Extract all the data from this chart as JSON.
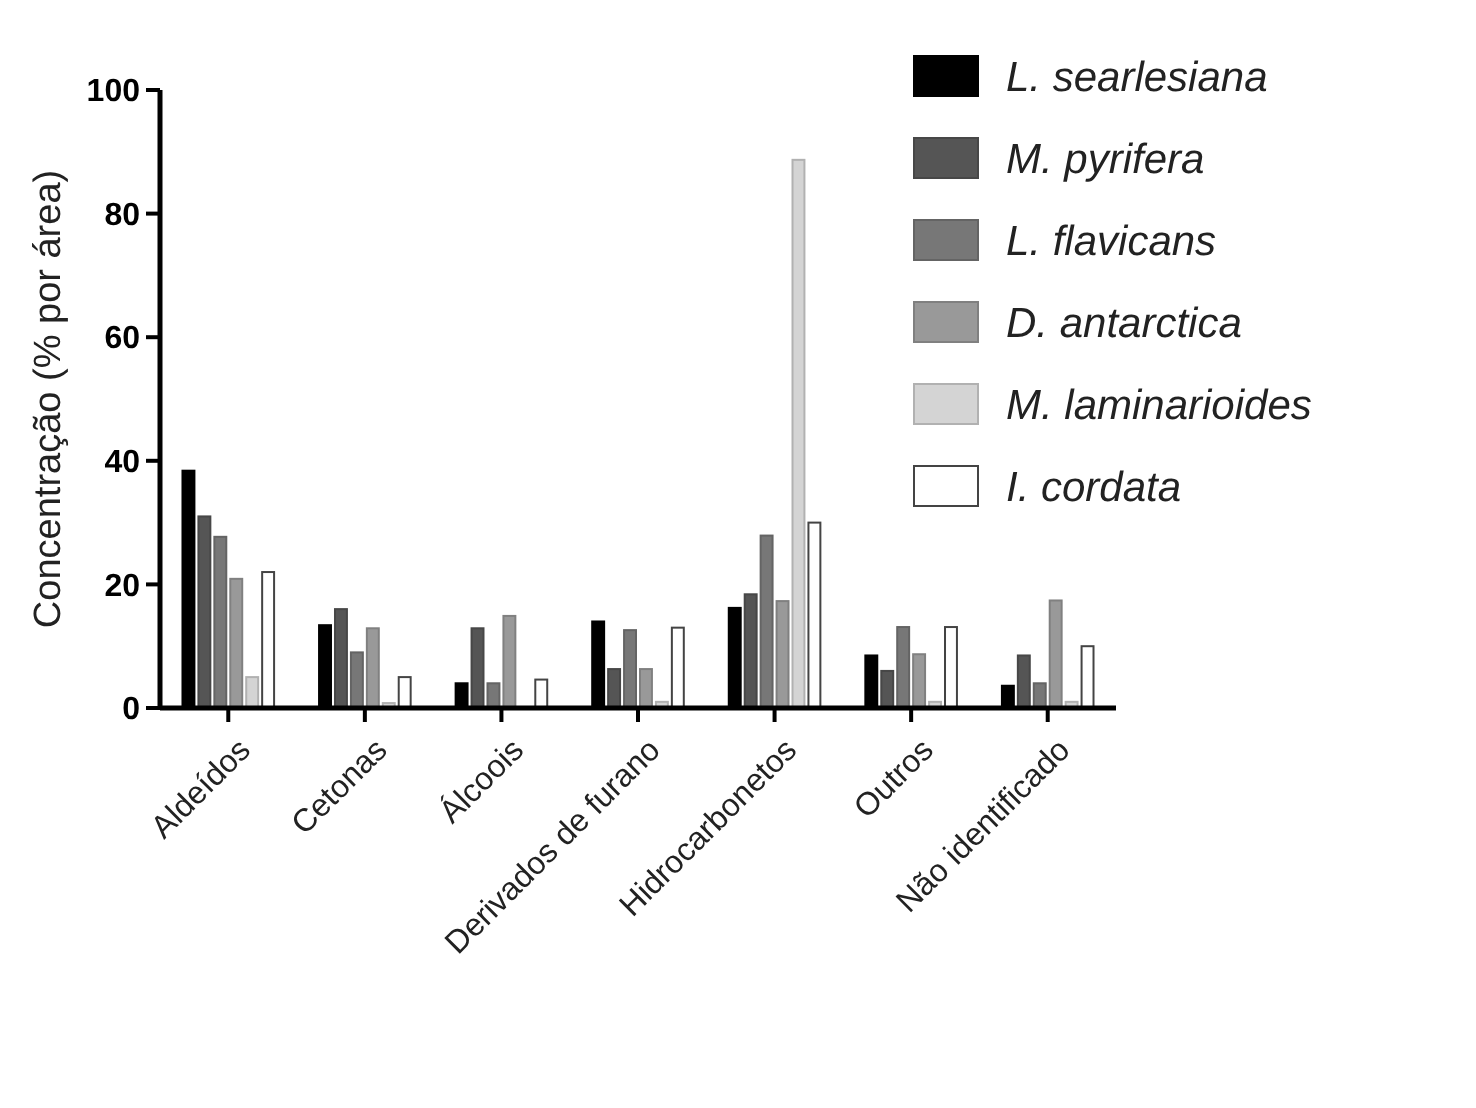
{
  "chart_data": {
    "type": "bar",
    "ylabel": "Concentração (% por área)",
    "categories": [
      "Aldeídos",
      "Cetonas",
      "Álcoois",
      "Derivados de furano",
      "Hidrocarbonetos",
      "Outros",
      "Não identificado"
    ],
    "series": [
      {
        "name": "L. searlesiana",
        "color": "#000000",
        "values": [
          38.4,
          13.4,
          4,
          14,
          16.2,
          8.5,
          3.6
        ]
      },
      {
        "name": "M. pyrifera",
        "color": "#555555",
        "values": [
          31,
          16,
          12.9,
          6.3,
          18.4,
          6,
          8.5
        ]
      },
      {
        "name": "L. flavicans",
        "color": "#777777",
        "values": [
          27.7,
          9,
          4,
          12.6,
          27.9,
          13.1,
          4
        ]
      },
      {
        "name": "D. antarctica",
        "color": "#999999",
        "values": [
          20.9,
          12.9,
          14.9,
          6.3,
          17.3,
          8.7,
          17.4
        ]
      },
      {
        "name": "M. laminarioides",
        "color": "#d4d4d4",
        "values": [
          5,
          0.8,
          0,
          1,
          88.7,
          1,
          1
        ]
      },
      {
        "name": "I. cordata",
        "color": "#ffffff",
        "values": [
          22,
          5,
          4.6,
          13,
          30,
          13.1,
          10
        ]
      }
    ],
    "ylim": [
      0,
      100
    ],
    "yticks": [
      0,
      20,
      40,
      60,
      80,
      100
    ],
    "legend": "top right"
  }
}
